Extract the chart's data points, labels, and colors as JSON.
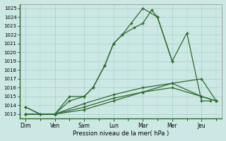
{
  "x_labels": [
    "Dim",
    "Ven",
    "Sam",
    "Lun",
    "Mar",
    "Mer",
    "Jeu"
  ],
  "xlabel": "Pression niveau de la mer( hPa )",
  "ylim": [
    1012.5,
    1025.5
  ],
  "yticks": [
    1013,
    1014,
    1015,
    1016,
    1017,
    1018,
    1019,
    1020,
    1021,
    1022,
    1023,
    1024,
    1025
  ],
  "line_color": "#2d6a2d",
  "bg_color": "#cce8e4",
  "grid_color": "#aaccc8",
  "marker": "+",
  "lines": [
    {
      "x": [
        0,
        0.5,
        1.0,
        1.5,
        2.0,
        2.3,
        2.7,
        3.0,
        3.3,
        3.7,
        4.0,
        4.3,
        4.5,
        5.0,
        5.5,
        6.0,
        6.3
      ],
      "y": [
        1013.8,
        1013.0,
        1013.0,
        1015.0,
        1015.0,
        1016.0,
        1018.5,
        1021.0,
        1022.0,
        1022.8,
        1023.3,
        1024.8,
        1024.0,
        1019.0,
        1022.2,
        1014.5,
        1014.5
      ]
    },
    {
      "x": [
        0,
        0.5,
        1.0,
        1.5,
        2.0,
        2.3,
        2.7,
        3.0,
        3.3,
        3.6,
        4.0,
        4.5,
        5.0
      ],
      "y": [
        1013.8,
        1013.0,
        1013.0,
        1014.5,
        1015.0,
        1016.0,
        1018.5,
        1021.0,
        1022.0,
        1023.3,
        1025.0,
        1024.0,
        1019.0
      ]
    },
    {
      "x": [
        0,
        1.0,
        2.0,
        3.0,
        4.0,
        5.0,
        6.0,
        6.5
      ],
      "y": [
        1013.0,
        1013.0,
        1013.5,
        1014.5,
        1015.5,
        1016.5,
        1017.0,
        1014.5
      ]
    },
    {
      "x": [
        0,
        1.0,
        2.0,
        3.0,
        4.0,
        5.0,
        6.0,
        6.5
      ],
      "y": [
        1013.0,
        1013.0,
        1013.8,
        1014.8,
        1015.5,
        1016.0,
        1015.0,
        1014.5
      ]
    },
    {
      "x": [
        0,
        1.0,
        2.0,
        3.0,
        4.0,
        5.0,
        6.0,
        6.5
      ],
      "y": [
        1013.0,
        1013.0,
        1014.2,
        1015.2,
        1016.0,
        1016.5,
        1015.0,
        1014.5
      ]
    }
  ]
}
